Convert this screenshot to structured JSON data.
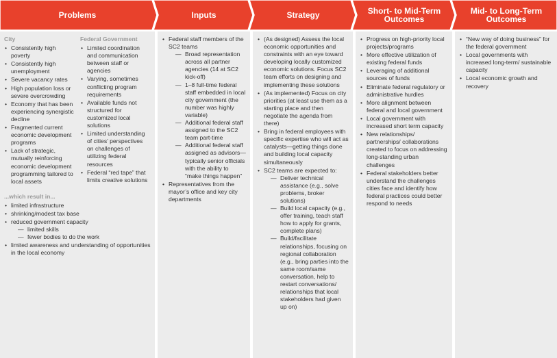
{
  "columns": [
    {
      "title": "Problems",
      "sections": [
        {
          "heading": "City",
          "items": [
            {
              "text": "Consistently high poverty"
            },
            {
              "text": "Consistently high unemployment"
            },
            {
              "text": "Severe vacancy rates"
            },
            {
              "text": "High population loss or severe overcrowding"
            },
            {
              "text": "Economy that has been experiencing synergistic decline"
            },
            {
              "text": "Fragmented current economic development programs"
            },
            {
              "text": "Lack of strategic, mutually reinforcing economic development programming tailored to local assets"
            }
          ]
        },
        {
          "heading": "Federal Government",
          "items": [
            {
              "text": "Limited coordination and communication between staff or agencies"
            },
            {
              "text": "Varying, sometimes conflicting program requirements"
            },
            {
              "text": "Available funds not structured for customized local solutions"
            },
            {
              "text": "Limited understanding of cities’ perspectives on challenges of utilizing federal resources"
            },
            {
              "text": "Federal “red tape” that limits creative solutions"
            }
          ]
        },
        {
          "heading": "...which result in...",
          "items": [
            {
              "text": "limited infrastructure"
            },
            {
              "text": "shrinking/modest tax base"
            },
            {
              "text": "reduced government capacity",
              "sub": [
                "limited skills",
                "fewer bodies to do the work"
              ]
            },
            {
              "text": "limited awareness and understanding of opportunities in the local economy"
            }
          ]
        }
      ]
    },
    {
      "title": "Inputs",
      "sections": [
        {
          "items": [
            {
              "text": "Federal staff  members of the SC2 teams",
              "sub": [
                "Broad representation across all partner agencies (14 at SC2 kick-off)",
                "1–8 full-time federal staff embedded in local city government (the number was highly variable)",
                "Additional federal staff assigned to the SC2 team part-time",
                "Additional federal staff assigned as advisors—typically senior officials with the ability to “make things happen”"
              ]
            },
            {
              "text": "Representatives from the mayor’s office and key city departments"
            }
          ]
        }
      ]
    },
    {
      "title": "Strategy",
      "sections": [
        {
          "items": [
            {
              "text": "(As designed) Assess the local economic opportunities and constraints with an eye toward developing locally customized economic solutions.  Focus  SC2 team efforts on designing and implementing these solutions"
            },
            {
              "text": "(As implemented) Focus on city priorities (at least use them as a starting place and then negotiate the agenda from there)"
            },
            {
              "text": "Bring in federal employees with specific expertise who will act as catalysts—getting things done and building local capacity simultaneously"
            },
            {
              "text": "SC2 teams are expected to:",
              "sub": [
                "Deliver technical assistance (e.g., solve problems, broker solutions)",
                "Build local capacity (e.g., offer training, teach staff how to apply for grants, complete plans)",
                "Build/facilitate relationships, focusing on regional collaboration (e.g., bring parties into the same room/same conversation, help to restart conversations/ relationships that local stakeholders had given up on)"
              ]
            }
          ]
        }
      ]
    },
    {
      "title": "Short- to Mid-Term Outcomes",
      "sections": [
        {
          "items": [
            {
              "text": "Progress on high-priority local projects/programs"
            },
            {
              "text": "More effective utilization of existing federal funds"
            },
            {
              "text": "Leveraging of additional sources of funds"
            },
            {
              "text": "Eliminate federal regulatory or administrative hurdles"
            },
            {
              "text": "More alignment between federal and local government"
            },
            {
              "text": "Local government with increased short term capacity"
            },
            {
              "text": "New relationships/ partnerships/ collaborations created to focus on addressing long-standing urban challenges"
            },
            {
              "text": "Federal stakeholders better understand the challenges cities face and identify how federal practices could better respond to needs"
            }
          ]
        }
      ]
    },
    {
      "title": "Mid- to Long-Term Outcomes",
      "sections": [
        {
          "items": [
            {
              "text": "“New way of doing business” for the federal government"
            },
            {
              "text": "Local governments with increased long-term/ sustainable capacity"
            },
            {
              "text": "Local economic growth and recovery"
            }
          ]
        }
      ]
    }
  ]
}
